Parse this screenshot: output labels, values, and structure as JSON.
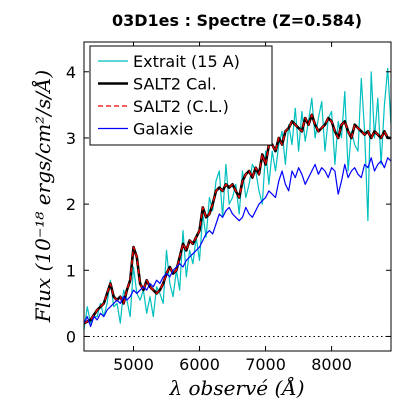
{
  "chart_data": {
    "type": "line",
    "title": "03D1es : Spectre (Z=0.584)",
    "xlabel": "λ observé (Å)",
    "ylabel": "Flux (10⁻¹⁸ ergs/cm²/s/Å)",
    "xlim": [
      4250,
      8900
    ],
    "ylim": [
      -0.22,
      4.45
    ],
    "xticks": [
      5000,
      6000,
      7000,
      8000
    ],
    "yticks": [
      0,
      1,
      2,
      3,
      4
    ],
    "xtick_labels": [
      "5000",
      "6000",
      "7000",
      "8000"
    ],
    "ytick_labels": [
      "0",
      "1",
      "2",
      "3",
      "4"
    ],
    "zero_line": 0,
    "legend_position": "top-left",
    "series": [
      {
        "name": "Extrait (15 A)",
        "color": "#00bfbf",
        "style": "solid",
        "x": [
          4250,
          4300,
          4350,
          4400,
          4450,
          4500,
          4550,
          4600,
          4650,
          4700,
          4750,
          4800,
          4850,
          4900,
          4950,
          5000,
          5050,
          5100,
          5150,
          5200,
          5250,
          5300,
          5350,
          5400,
          5450,
          5500,
          5550,
          5600,
          5650,
          5700,
          5750,
          5800,
          5850,
          5900,
          5950,
          6000,
          6050,
          6100,
          6150,
          6200,
          6250,
          6300,
          6350,
          6400,
          6450,
          6500,
          6550,
          6600,
          6650,
          6700,
          6750,
          6800,
          6850,
          6900,
          6950,
          7000,
          7050,
          7100,
          7150,
          7200,
          7250,
          7300,
          7350,
          7400,
          7450,
          7500,
          7550,
          7600,
          7650,
          7700,
          7750,
          7800,
          7850,
          7900,
          7950,
          8000,
          8050,
          8100,
          8150,
          8200,
          8250,
          8300,
          8350,
          8400,
          8450,
          8500,
          8550,
          8600,
          8650,
          8700,
          8750,
          8800,
          8850,
          8900
        ],
        "values": [
          0.1,
          0.45,
          0.2,
          0.3,
          0.3,
          0.5,
          0.3,
          0.5,
          0.85,
          0.45,
          0.5,
          0.2,
          0.7,
          0.55,
          0.3,
          1.05,
          0.65,
          0.55,
          0.7,
          0.35,
          0.6,
          0.3,
          0.75,
          0.65,
          0.5,
          1.3,
          0.8,
          0.6,
          1.0,
          0.7,
          1.6,
          0.9,
          1.3,
          1.1,
          1.5,
          1.15,
          1.85,
          1.5,
          2.1,
          1.9,
          2.35,
          2.5,
          1.8,
          2.6,
          2.0,
          2.1,
          2.3,
          1.85,
          2.5,
          2.1,
          2.3,
          2.6,
          2.5,
          2.2,
          2.0,
          2.8,
          2.3,
          2.8,
          2.5,
          2.9,
          3.1,
          2.6,
          3.2,
          2.9,
          3.45,
          2.8,
          3.4,
          2.95,
          3.25,
          3.6,
          3.0,
          3.3,
          3.55,
          2.8,
          3.3,
          3.4,
          2.6,
          3.25,
          3.0,
          3.7,
          2.5,
          3.1,
          2.9,
          2.8,
          3.9,
          3.1,
          1.75,
          4.0,
          3.0,
          3.6,
          2.6,
          3.5,
          4.05,
          3.2
        ]
      },
      {
        "name": "SALT2 Cal.",
        "color": "#000000",
        "style": "solid-thick",
        "x": [
          4250,
          4350,
          4450,
          4550,
          4650,
          4700,
          4750,
          4800,
          4850,
          4900,
          4950,
          5000,
          5050,
          5100,
          5150,
          5200,
          5250,
          5300,
          5350,
          5400,
          5450,
          5500,
          5550,
          5600,
          5650,
          5700,
          5750,
          5800,
          5850,
          5900,
          5950,
          6000,
          6050,
          6100,
          6150,
          6200,
          6250,
          6300,
          6350,
          6400,
          6450,
          6500,
          6550,
          6600,
          6650,
          6700,
          6750,
          6800,
          6850,
          6900,
          6950,
          7000,
          7050,
          7100,
          7150,
          7200,
          7250,
          7300,
          7350,
          7400,
          7450,
          7500,
          7550,
          7600,
          7650,
          7700,
          7750,
          7800,
          7850,
          7900,
          7950,
          8000,
          8050,
          8100,
          8150,
          8200,
          8250,
          8300,
          8350,
          8400,
          8450,
          8500,
          8550,
          8600,
          8650,
          8700,
          8750,
          8800,
          8850,
          8900
        ],
        "values": [
          0.2,
          0.25,
          0.4,
          0.5,
          0.8,
          0.6,
          0.55,
          0.6,
          0.5,
          0.7,
          0.85,
          1.35,
          1.2,
          0.8,
          0.7,
          0.85,
          0.75,
          0.7,
          0.65,
          0.7,
          0.8,
          0.95,
          1.05,
          0.95,
          1.0,
          1.2,
          1.4,
          1.3,
          1.45,
          1.4,
          1.5,
          1.6,
          1.95,
          1.8,
          1.85,
          2.0,
          2.2,
          2.25,
          2.2,
          2.3,
          2.25,
          2.3,
          2.2,
          2.1,
          2.35,
          2.45,
          2.5,
          2.4,
          2.55,
          2.45,
          2.75,
          2.6,
          2.9,
          2.9,
          2.8,
          3.0,
          2.9,
          3.1,
          3.15,
          3.25,
          3.2,
          3.15,
          3.1,
          3.3,
          3.2,
          3.35,
          3.2,
          3.1,
          3.15,
          3.2,
          3.3,
          3.25,
          3.1,
          3.0,
          3.2,
          3.25,
          3.1,
          3.0,
          3.2,
          3.15,
          3.1,
          3.05,
          3.1,
          3.0,
          3.1,
          3.05,
          3.0,
          3.1,
          3.0,
          3.0
        ]
      },
      {
        "name": "SALT2 (C.L.)",
        "color": "#ff0000",
        "style": "dashed",
        "x": [
          4250,
          4350,
          4450,
          4550,
          4650,
          4700,
          4750,
          4800,
          4850,
          4900,
          4950,
          5000,
          5050,
          5100,
          5150,
          5200,
          5250,
          5300,
          5350,
          5400,
          5450,
          5500,
          5550,
          5600,
          5650,
          5700,
          5750,
          5800,
          5850,
          5900,
          5950,
          6000,
          6050,
          6100,
          6150,
          6200,
          6250,
          6300,
          6350,
          6400,
          6450,
          6500,
          6550,
          6600,
          6650,
          6700,
          6750,
          6800,
          6850,
          6900,
          6950,
          7000,
          7050,
          7100,
          7150,
          7200,
          7250,
          7300,
          7350,
          7400,
          7450,
          7500,
          7550,
          7600,
          7650,
          7700,
          7750,
          7800,
          7850,
          7900,
          7950,
          8000,
          8050,
          8100,
          8150,
          8200,
          8250,
          8300,
          8350,
          8400,
          8450,
          8500,
          8550,
          8600,
          8650,
          8700,
          8750,
          8800,
          8850,
          8900
        ],
        "values": [
          0.2,
          0.25,
          0.4,
          0.5,
          0.8,
          0.6,
          0.55,
          0.6,
          0.5,
          0.7,
          0.85,
          1.35,
          1.2,
          0.8,
          0.7,
          0.85,
          0.75,
          0.7,
          0.65,
          0.7,
          0.8,
          0.95,
          1.05,
          0.95,
          1.0,
          1.2,
          1.4,
          1.3,
          1.45,
          1.4,
          1.5,
          1.6,
          1.95,
          1.8,
          1.85,
          2.0,
          2.2,
          2.25,
          2.2,
          2.3,
          2.25,
          2.3,
          2.2,
          2.1,
          2.35,
          2.45,
          2.5,
          2.4,
          2.55,
          2.45,
          2.75,
          2.6,
          2.9,
          2.9,
          2.8,
          3.0,
          2.9,
          3.1,
          3.15,
          3.25,
          3.2,
          3.15,
          3.1,
          3.3,
          3.2,
          3.35,
          3.2,
          3.1,
          3.15,
          3.2,
          3.3,
          3.25,
          3.1,
          3.0,
          3.2,
          3.25,
          3.1,
          3.0,
          3.2,
          3.15,
          3.1,
          3.05,
          3.1,
          3.0,
          3.1,
          3.05,
          3.0,
          3.1,
          3.0,
          3.0
        ]
      },
      {
        "name": "Galaxie",
        "color": "#0000ff",
        "style": "solid",
        "x": [
          4250,
          4300,
          4350,
          4400,
          4450,
          4500,
          4550,
          4600,
          4650,
          4700,
          4750,
          4800,
          4850,
          4900,
          4950,
          5000,
          5050,
          5100,
          5150,
          5200,
          5250,
          5300,
          5350,
          5400,
          5450,
          5500,
          5550,
          5600,
          5650,
          5700,
          5750,
          5800,
          5850,
          5900,
          5950,
          6000,
          6050,
          6100,
          6150,
          6200,
          6250,
          6300,
          6350,
          6400,
          6450,
          6500,
          6550,
          6600,
          6650,
          6700,
          6750,
          6800,
          6850,
          6900,
          6950,
          7000,
          7050,
          7100,
          7150,
          7200,
          7250,
          7300,
          7350,
          7400,
          7450,
          7500,
          7550,
          7600,
          7650,
          7700,
          7750,
          7800,
          7850,
          7900,
          7950,
          8000,
          8050,
          8100,
          8150,
          8200,
          8250,
          8300,
          8350,
          8400,
          8450,
          8500,
          8550,
          8600,
          8650,
          8700,
          8750,
          8800,
          8850,
          8900
        ],
        "values": [
          0.2,
          0.3,
          0.15,
          0.3,
          0.25,
          0.35,
          0.3,
          0.4,
          0.45,
          0.5,
          0.55,
          0.5,
          0.6,
          0.55,
          0.6,
          0.7,
          0.65,
          0.7,
          0.75,
          0.7,
          0.8,
          0.75,
          0.85,
          0.8,
          0.9,
          0.95,
          0.9,
          1.0,
          1.05,
          1.1,
          1.05,
          1.15,
          1.2,
          1.25,
          1.3,
          1.35,
          1.45,
          1.55,
          1.6,
          1.55,
          1.7,
          1.85,
          1.8,
          1.9,
          1.95,
          1.85,
          1.8,
          1.75,
          1.8,
          1.95,
          1.85,
          1.8,
          1.9,
          2.0,
          2.05,
          2.1,
          2.2,
          2.15,
          2.1,
          2.35,
          2.5,
          2.3,
          2.2,
          2.5,
          2.4,
          2.55,
          2.45,
          2.3,
          2.4,
          2.5,
          2.6,
          2.45,
          2.55,
          2.5,
          2.4,
          2.55,
          2.5,
          2.15,
          2.35,
          2.6,
          2.4,
          2.5,
          2.55,
          2.45,
          2.4,
          2.6,
          2.55,
          2.7,
          2.5,
          2.6,
          2.65,
          2.55,
          2.7,
          2.65
        ]
      }
    ]
  }
}
